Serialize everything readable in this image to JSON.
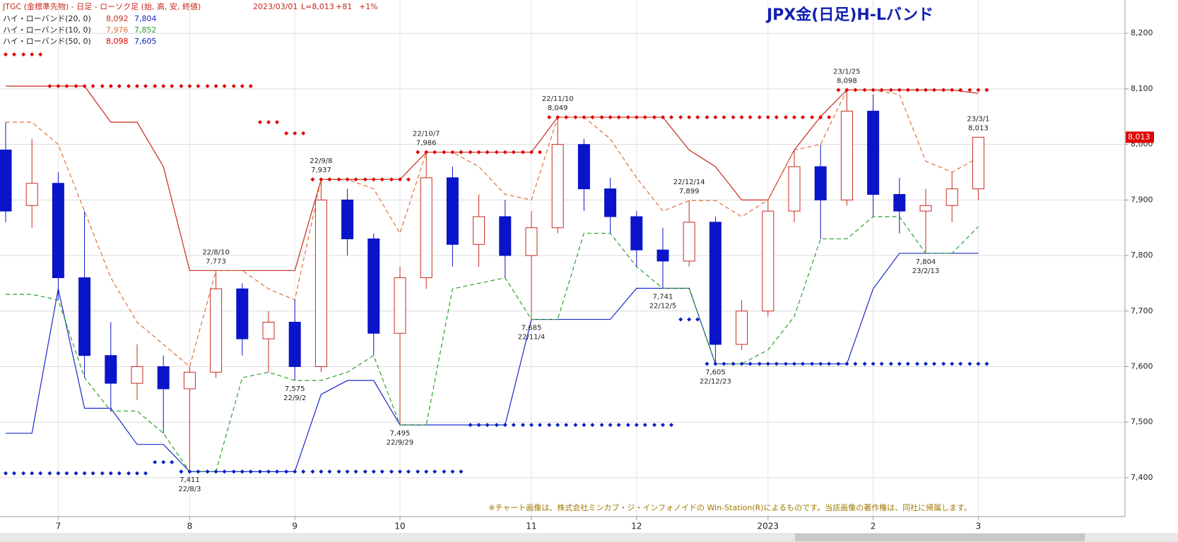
{
  "header": {
    "instrument": "JTGC (金標準先物) - 日足 - ローソク足 (始, 高, 安, 終値)",
    "date": "2023/03/01",
    "last": "L=8,013",
    "change": "+81",
    "pct": "+1%"
  },
  "chart_data": {
    "type": "candlestick",
    "title": "JPX金(日足)H-Lバンド",
    "note": "※チャート画像は、株式会社ミンカブ・ジ・インフォノイドの Win-Station(R)によるものです。当該画像の著作権は、同社に帰属します。",
    "categories": [
      null,
      null,
      "7",
      null,
      null,
      null,
      null,
      "8",
      null,
      null,
      null,
      "9",
      null,
      null,
      null,
      "10",
      null,
      null,
      null,
      null,
      "11",
      null,
      null,
      null,
      "12",
      null,
      null,
      null,
      null,
      "2023",
      null,
      null,
      null,
      "2",
      null,
      null,
      null,
      "3"
    ],
    "open": [
      7990,
      7890,
      7930,
      7760,
      7620,
      7570,
      7600,
      7560,
      7590,
      7740,
      7650,
      7680,
      7600,
      7900,
      7830,
      7660,
      7760,
      7940,
      7820,
      7870,
      7800,
      7850,
      8000,
      7920,
      7870,
      7810,
      7790,
      7860,
      7640,
      7700,
      7880,
      7960,
      7900,
      8060,
      7910,
      7880,
      7890,
      7920
    ],
    "high": [
      8040,
      8010,
      7950,
      7880,
      7680,
      7640,
      7620,
      7600,
      7773,
      7750,
      7700,
      7720,
      7937,
      7920,
      7840,
      7780,
      7986,
      7960,
      7910,
      7900,
      7880,
      8049,
      8010,
      7940,
      7880,
      7850,
      7899,
      7870,
      7720,
      7900,
      7990,
      8000,
      8098,
      8090,
      7940,
      7920,
      7950,
      8013
    ],
    "low": [
      7860,
      7850,
      7720,
      7580,
      7520,
      7540,
      7480,
      7411,
      7580,
      7620,
      7590,
      7575,
      7590,
      7800,
      7620,
      7495,
      7740,
      7780,
      7780,
      7760,
      7685,
      7840,
      7880,
      7840,
      7780,
      7741,
      7780,
      7605,
      7630,
      7690,
      7860,
      7830,
      7890,
      7870,
      7840,
      7804,
      7860,
      7900
    ],
    "close": [
      7880,
      7930,
      7760,
      7620,
      7570,
      7600,
      7560,
      7590,
      7740,
      7650,
      7680,
      7600,
      7900,
      7830,
      7660,
      7760,
      7940,
      7820,
      7870,
      7800,
      7850,
      8000,
      7920,
      7870,
      7810,
      7790,
      7860,
      7640,
      7700,
      7880,
      7960,
      7900,
      8060,
      7910,
      7880,
      7890,
      7920,
      8013
    ],
    "up_color": "#c8281e",
    "down_color": "#0a14c8",
    "bands": [
      {
        "name": "ハイ・ローバンド(20, 0)",
        "style": "solid",
        "high_color": "#c8281e",
        "low_color": "#1a28c8",
        "legend_values": [
          {
            "value": 8092,
            "label": "8,092"
          },
          {
            "value": 7804,
            "label": "7,804"
          }
        ],
        "high": [
          8105,
          8105,
          8105,
          8105,
          8040,
          8040,
          7960,
          7773,
          7773,
          7773,
          7773,
          7773,
          7937,
          7937,
          7937,
          7937,
          7986,
          7986,
          7986,
          7986,
          7986,
          8049,
          8049,
          8049,
          8049,
          8049,
          7990,
          7960,
          7900,
          7900,
          7990,
          8050,
          8098,
          8098,
          8098,
          8098,
          8098,
          8092
        ],
        "low": [
          7480,
          7480,
          7740,
          7525,
          7525,
          7460,
          7460,
          7411,
          7411,
          7411,
          7411,
          7411,
          7550,
          7575,
          7575,
          7495,
          7495,
          7495,
          7495,
          7495,
          7685,
          7685,
          7685,
          7685,
          7741,
          7741,
          7741,
          7605,
          7605,
          7605,
          7605,
          7605,
          7605,
          7740,
          7804,
          7804,
          7804,
          7804
        ]
      },
      {
        "name": "ハイ・ローバンド(10, 0)",
        "style": "dashed",
        "high_color": "#e0703a",
        "low_color": "#2aa02a",
        "legend_values": [
          {
            "value": 7976,
            "label": "7,976"
          },
          {
            "value": 7852,
            "label": "7,852"
          }
        ],
        "high": [
          8040,
          8040,
          8000,
          7880,
          7760,
          7680,
          7640,
          7600,
          7773,
          7773,
          7740,
          7720,
          7937,
          7937,
          7920,
          7840,
          7986,
          7986,
          7960,
          7910,
          7900,
          8049,
          8049,
          8010,
          7940,
          7880,
          7899,
          7899,
          7870,
          7900,
          7990,
          8000,
          8098,
          8098,
          8090,
          7970,
          7950,
          7976
        ],
        "low": [
          7730,
          7730,
          7720,
          7580,
          7520,
          7520,
          7480,
          7411,
          7411,
          7580,
          7590,
          7575,
          7575,
          7590,
          7620,
          7495,
          7495,
          7740,
          7750,
          7760,
          7685,
          7685,
          7840,
          7840,
          7780,
          7741,
          7741,
          7605,
          7605,
          7630,
          7690,
          7830,
          7830,
          7870,
          7870,
          7804,
          7804,
          7852
        ]
      },
      {
        "name": "ハイ・ローバンド(50, 0)",
        "style": "diamond",
        "high_color": "#e00000",
        "low_color": "#0020c0",
        "legend_values": [
          {
            "value": 8098,
            "label": "8,098"
          },
          {
            "value": 7605,
            "label": "7,605"
          }
        ],
        "high": [
          8162,
          8162,
          8105,
          8105,
          8105,
          8105,
          8105,
          8105,
          8105,
          8105,
          8040,
          8020,
          7937,
          7937,
          7937,
          7937,
          7986,
          7986,
          7986,
          7986,
          7986,
          8049,
          8049,
          8049,
          8049,
          8049,
          8049,
          8049,
          8049,
          8049,
          8049,
          8049,
          8098,
          8098,
          8098,
          8098,
          8098,
          8098
        ],
        "low": [
          7408,
          7408,
          7408,
          7408,
          7408,
          7408,
          7428,
          7411,
          7411,
          7411,
          7411,
          7411,
          7411,
          7411,
          7411,
          7411,
          7411,
          7411,
          7495,
          7495,
          7495,
          7495,
          7495,
          7495,
          7495,
          7495,
          7685,
          7605,
          7605,
          7605,
          7605,
          7605,
          7605,
          7605,
          7605,
          7605,
          7605,
          7605
        ]
      }
    ],
    "annotations": [
      {
        "date": "22/8/3",
        "value": 7411,
        "label": "7,411"
      },
      {
        "date": "22/8/10",
        "value": 7773,
        "label": "7,773"
      },
      {
        "date": "22/9/2",
        "value": 7575,
        "label": "7,575"
      },
      {
        "date": "22/9/8",
        "value": 7937,
        "label": "7,937"
      },
      {
        "date": "22/9/29",
        "value": 7495,
        "label": "7,495"
      },
      {
        "date": "22/10/7",
        "value": 7986,
        "label": "7,986"
      },
      {
        "date": "22/11/4",
        "value": 7685,
        "label": "7,685"
      },
      {
        "date": "22/11/10",
        "value": 8049,
        "label": "8,049"
      },
      {
        "date": "22/12/5",
        "value": 7741,
        "label": "7,741"
      },
      {
        "date": "22/12/14",
        "value": 7899,
        "label": "7,899"
      },
      {
        "date": "22/12/23",
        "value": 7605,
        "label": "7,605"
      },
      {
        "date": "23/1/25",
        "value": 8098,
        "label": "8,098"
      },
      {
        "date": "23/2/13",
        "value": 7804,
        "label": "7,804"
      },
      {
        "date": "23/3/1",
        "value": 8013,
        "label": "8,013"
      }
    ],
    "last_price": {
      "value": 8013,
      "label": "8,013"
    },
    "ylim": [
      7330,
      8260
    ],
    "yticks": [
      {
        "value": 7400,
        "label": "7,400"
      },
      {
        "value": 7500,
        "label": "7,500"
      },
      {
        "value": 7600,
        "label": "7,600"
      },
      {
        "value": 7700,
        "label": "7,700"
      },
      {
        "value": 7800,
        "label": "7,800"
      },
      {
        "value": 7900,
        "label": "7,900"
      },
      {
        "value": 8000,
        "label": "8,000"
      },
      {
        "value": 8100,
        "label": "8,100"
      },
      {
        "value": 8200,
        "label": "8,200"
      }
    ],
    "grid": true
  }
}
